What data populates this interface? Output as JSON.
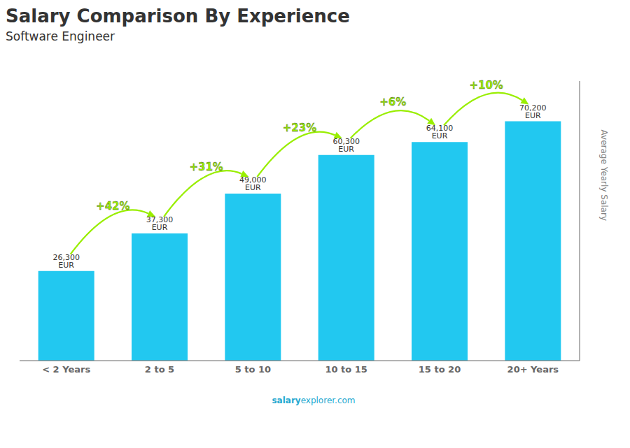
{
  "chart_data": {
    "type": "bar",
    "title": "Salary Comparison By Experience",
    "subtitle": "Software Engineer",
    "ylabel": "Average Yearly Salary",
    "categories": [
      "< 2 Years",
      "2 to 5",
      "5 to 10",
      "10 to 15",
      "15 to 20",
      "20+ Years"
    ],
    "values": [
      26300,
      37300,
      49000,
      60300,
      64100,
      70200
    ],
    "value_labels": [
      "26,300 EUR",
      "37,300 EUR",
      "49,000 EUR",
      "60,300 EUR",
      "64,100 EUR",
      "70,200 EUR"
    ],
    "data_labels": true,
    "color": "#22c8f0",
    "ylim": [
      0,
      82000
    ],
    "yticks": [],
    "tick_labels": "x",
    "grid": false,
    "arrows": [
      {
        "from": "< 2 Years",
        "to": "2 to 5",
        "value": 42,
        "label": "+42%",
        "color": "#99ee00"
      },
      {
        "from": "2 to 5",
        "to": "5 to 10",
        "value": 31,
        "label": "+31%",
        "color": "#99ee00"
      },
      {
        "from": "5 to 10",
        "to": "10 to 15",
        "value": 23,
        "label": "+23%",
        "color": "#99ee00"
      },
      {
        "from": "10 to 15",
        "to": "15 to 20",
        "value": 6,
        "label": "+6%",
        "color": "#99ee00"
      },
      {
        "from": "15 to 20",
        "to": "20+ Years",
        "value": 10,
        "label": "+10%",
        "color": "#99ee00"
      }
    ],
    "annotations": [
      "salary",
      "explorer.com"
    ]
  }
}
